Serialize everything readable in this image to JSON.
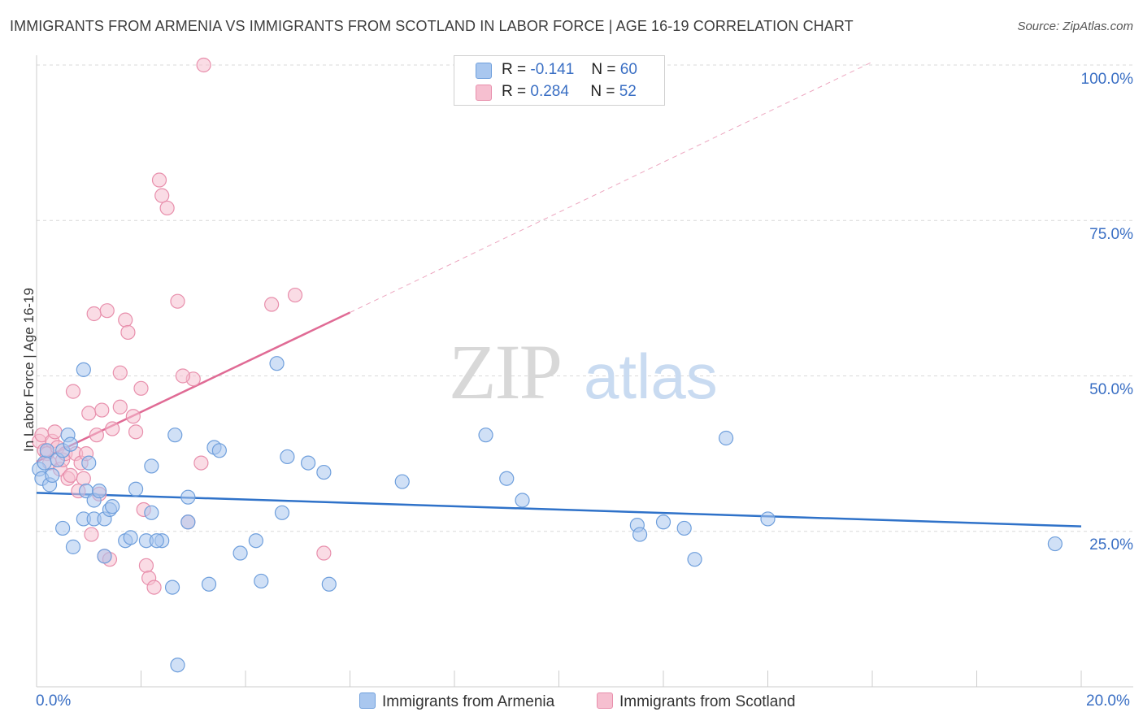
{
  "title": "IMMIGRANTS FROM ARMENIA VS IMMIGRANTS FROM SCOTLAND IN LABOR FORCE | AGE 16-19 CORRELATION CHART",
  "source": "Source: ZipAtlas.com",
  "watermark": {
    "zip": "ZIP",
    "atlas": "atlas"
  },
  "colors": {
    "armenia_fill": "#a9c7ef",
    "armenia_stroke": "#6f9fdc",
    "armenia_line": "#2f72c9",
    "scotland_fill": "#f6bfd0",
    "scotland_stroke": "#e88fac",
    "scotland_line": "#e06b95",
    "tick_label": "#3a6fc4",
    "grid": "#d9d9d9"
  },
  "legend": {
    "armenia": {
      "r_label": "R =",
      "r_value": "-0.141",
      "n_label": "N =",
      "n_value": "60"
    },
    "scotland": {
      "r_label": "R =",
      "r_value": "0.284",
      "n_label": "N =",
      "n_value": "52"
    }
  },
  "chart_data": {
    "type": "scatter",
    "title": "IMMIGRANTS FROM ARMENIA VS IMMIGRANTS FROM SCOTLAND IN LABOR FORCE | AGE 16-19 CORRELATION CHART",
    "xlabel": "",
    "ylabel": "In Labor Force | Age 16-19",
    "xlim": [
      0,
      20
    ],
    "ylim": [
      0,
      100
    ],
    "x_tick_labels": [
      "0.0%",
      "20.0%"
    ],
    "y_ticks": [
      25,
      50,
      75,
      100
    ],
    "y_tick_labels": [
      "25.0%",
      "50.0%",
      "75.0%",
      "100.0%"
    ],
    "series": [
      {
        "name": "Immigrants from Armenia",
        "r": -0.141,
        "n": 60,
        "trend": {
          "x": [
            0,
            20
          ],
          "y": [
            31.2,
            25.8
          ]
        },
        "points": [
          [
            0.05,
            35.0
          ],
          [
            0.1,
            33.5
          ],
          [
            0.15,
            36.0
          ],
          [
            0.2,
            38.0
          ],
          [
            0.25,
            32.5
          ],
          [
            0.3,
            34.0
          ],
          [
            0.4,
            36.5
          ],
          [
            0.5,
            38.0
          ],
          [
            0.6,
            40.5
          ],
          [
            0.65,
            39.0
          ],
          [
            0.5,
            25.5
          ],
          [
            0.7,
            22.5
          ],
          [
            0.9,
            27.0
          ],
          [
            0.95,
            31.5
          ],
          [
            1.0,
            36.0
          ],
          [
            1.1,
            27.0
          ],
          [
            1.1,
            30.0
          ],
          [
            1.2,
            31.5
          ],
          [
            1.3,
            27.0
          ],
          [
            1.4,
            28.5
          ],
          [
            1.45,
            29.0
          ],
          [
            0.9,
            51.0
          ],
          [
            1.3,
            21.0
          ],
          [
            1.7,
            23.5
          ],
          [
            1.8,
            24.0
          ],
          [
            1.9,
            31.8
          ],
          [
            2.1,
            23.5
          ],
          [
            2.2,
            28.0
          ],
          [
            2.2,
            35.5
          ],
          [
            2.4,
            23.5
          ],
          [
            2.6,
            16.0
          ],
          [
            2.65,
            40.5
          ],
          [
            2.7,
            3.5
          ],
          [
            2.9,
            26.5
          ],
          [
            2.9,
            30.5
          ],
          [
            3.3,
            16.5
          ],
          [
            3.4,
            38.5
          ],
          [
            3.5,
            38.0
          ],
          [
            3.9,
            21.5
          ],
          [
            4.2,
            23.5
          ],
          [
            4.3,
            17.0
          ],
          [
            4.6,
            52.0
          ],
          [
            4.7,
            28.0
          ],
          [
            4.8,
            37.0
          ],
          [
            5.2,
            36.0
          ],
          [
            5.5,
            34.5
          ],
          [
            5.6,
            16.5
          ],
          [
            7.0,
            33.0
          ],
          [
            8.6,
            40.5
          ],
          [
            9.0,
            33.5
          ],
          [
            9.3,
            30.0
          ],
          [
            11.5,
            26.0
          ],
          [
            11.55,
            24.5
          ],
          [
            12.0,
            26.5
          ],
          [
            12.4,
            25.5
          ],
          [
            12.6,
            20.5
          ],
          [
            13.2,
            40.0
          ],
          [
            14.0,
            27.0
          ],
          [
            19.5,
            23.0
          ],
          [
            2.3,
            23.5
          ]
        ]
      },
      {
        "name": "Immigrants from Scotland",
        "r": 0.284,
        "n": 52,
        "trend": {
          "x": [
            0,
            6
          ],
          "y": [
            36.2,
            60.2
          ]
        },
        "trend_extended": {
          "x": [
            6,
            16
          ],
          "y": [
            60.2,
            100.5
          ]
        },
        "points": [
          [
            0.05,
            39.5
          ],
          [
            0.1,
            40.5
          ],
          [
            0.15,
            38.0
          ],
          [
            0.2,
            37.5
          ],
          [
            0.25,
            36.0
          ],
          [
            0.3,
            39.5
          ],
          [
            0.35,
            41.0
          ],
          [
            0.4,
            38.5
          ],
          [
            0.45,
            35.0
          ],
          [
            0.5,
            36.5
          ],
          [
            0.55,
            37.5
          ],
          [
            0.6,
            33.5
          ],
          [
            0.65,
            34.0
          ],
          [
            0.7,
            47.5
          ],
          [
            0.75,
            37.5
          ],
          [
            0.8,
            31.5
          ],
          [
            0.85,
            36.0
          ],
          [
            0.9,
            33.5
          ],
          [
            0.95,
            37.5
          ],
          [
            1.0,
            44.0
          ],
          [
            1.05,
            24.5
          ],
          [
            1.1,
            60.0
          ],
          [
            1.15,
            40.5
          ],
          [
            1.2,
            31.0
          ],
          [
            1.25,
            44.5
          ],
          [
            1.3,
            21.0
          ],
          [
            1.35,
            60.5
          ],
          [
            1.4,
            20.5
          ],
          [
            1.45,
            41.5
          ],
          [
            1.6,
            50.5
          ],
          [
            1.6,
            45.0
          ],
          [
            1.7,
            59.0
          ],
          [
            1.75,
            57.0
          ],
          [
            1.85,
            43.5
          ],
          [
            1.9,
            41.0
          ],
          [
            2.0,
            48.0
          ],
          [
            2.05,
            28.5
          ],
          [
            2.1,
            19.5
          ],
          [
            2.15,
            17.5
          ],
          [
            2.25,
            16.0
          ],
          [
            2.35,
            81.5
          ],
          [
            2.4,
            79.0
          ],
          [
            2.5,
            77.0
          ],
          [
            2.7,
            62.0
          ],
          [
            2.9,
            26.5
          ],
          [
            3.0,
            49.5
          ],
          [
            3.15,
            36.0
          ],
          [
            4.5,
            61.5
          ],
          [
            4.95,
            63.0
          ],
          [
            5.5,
            21.5
          ],
          [
            3.2,
            100.0
          ],
          [
            2.8,
            50.0
          ]
        ]
      }
    ]
  },
  "bottom_legend": {
    "armenia": "Immigrants from Armenia",
    "scotland": "Immigrants from Scotland"
  }
}
